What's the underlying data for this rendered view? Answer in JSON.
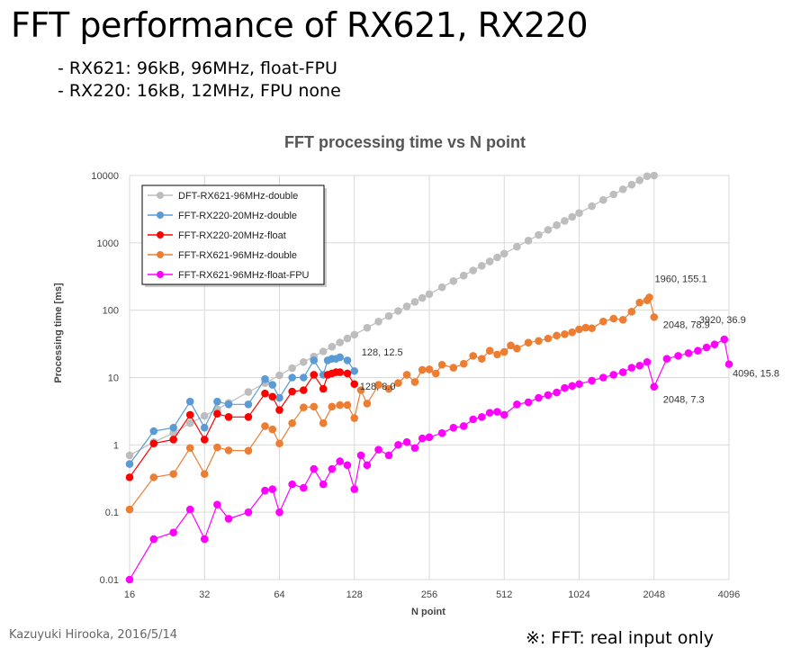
{
  "slide": {
    "title": "FFT performance of RX621, RX220",
    "bullets": [
      "- RX621: 96kB, 96MHz, float-FPU",
      "- RX220: 16kB, 12MHz, FPU none"
    ],
    "credit": "Kazuyuki Hirooka, 2016/5/14",
    "note": "※: FFT: real input only"
  },
  "chart_data": {
    "type": "line",
    "title": "FFT processing time vs N point",
    "xlabel": "N point",
    "ylabel": "Processing time [ms]",
    "xscale": "log2",
    "yscale": "log10",
    "xlim": [
      16,
      4096
    ],
    "ylim": [
      0.01,
      10000
    ],
    "xticks": [
      16,
      32,
      64,
      128,
      256,
      512,
      1024,
      2048,
      4096
    ],
    "xtick_labels": [
      "16",
      "32",
      "64",
      "128",
      "256",
      "512",
      "1024",
      "2048",
      "4096"
    ],
    "yticks": [
      0.01,
      0.1,
      1,
      10,
      100,
      1000,
      10000
    ],
    "ytick_labels": [
      "0.01",
      "0.1",
      "1",
      "10",
      "100",
      "1000",
      "10000"
    ],
    "grid": true,
    "legend_position": "top-left",
    "series": [
      {
        "name": "DFT-RX621-96MHz-double",
        "color": "#bdbdbd",
        "x": [
          16,
          20,
          24,
          28,
          32,
          36,
          40,
          48,
          56,
          64,
          72,
          80,
          88,
          96,
          104,
          112,
          120,
          128,
          144,
          160,
          176,
          192,
          208,
          224,
          240,
          256,
          288,
          320,
          352,
          384,
          416,
          448,
          480,
          512,
          576,
          640,
          704,
          768,
          832,
          896,
          960,
          1024,
          1152,
          1280,
          1408,
          1536,
          1664,
          1792,
          1920,
          2048
        ],
        "y": [
          0.7,
          1.1,
          1.5,
          2.1,
          2.7,
          3.4,
          4.2,
          6.1,
          8.3,
          10.8,
          13.8,
          17,
          20.5,
          24.4,
          28.6,
          33.2,
          38.1,
          43.3,
          54.8,
          67.7,
          82,
          97.5,
          114,
          133,
          152,
          173,
          219,
          271,
          327,
          389,
          457,
          530,
          608,
          692,
          876,
          1080,
          1310,
          1560,
          1830,
          2120,
          2430,
          2770,
          3500,
          4330,
          5240,
          6230,
          7310,
          8480,
          9740,
          10000
        ]
      },
      {
        "name": "FFT-RX220-20MHz-double",
        "color": "#5b9bd5",
        "x": [
          16,
          20,
          24,
          28,
          32,
          36,
          40,
          48,
          56,
          60,
          64,
          72,
          80,
          88,
          96,
          100,
          104,
          108,
          112,
          120,
          128
        ],
        "y": [
          0.52,
          1.6,
          1.8,
          4.4,
          1.8,
          4.4,
          4,
          4,
          9.5,
          7.8,
          5,
          10,
          10,
          18,
          11,
          18,
          19,
          19,
          20,
          18,
          12.5
        ]
      },
      {
        "name": "FFT-RX220-20MHz-float",
        "color": "#ff0000",
        "x": [
          16,
          20,
          24,
          28,
          32,
          36,
          40,
          48,
          56,
          60,
          64,
          72,
          80,
          88,
          96,
          100,
          104,
          108,
          112,
          120,
          128
        ],
        "y": [
          0.33,
          1.05,
          1.2,
          2.8,
          1.2,
          2.9,
          2.6,
          2.6,
          5.8,
          5.2,
          3.3,
          6.2,
          6.5,
          11,
          6.8,
          11,
          11.5,
          12,
          12,
          11.5,
          8
        ]
      },
      {
        "name": "FFT-RX621-96MHz-double",
        "color": "#ed7d31",
        "x": [
          16,
          20,
          24,
          28,
          32,
          36,
          40,
          48,
          56,
          60,
          64,
          72,
          80,
          88,
          96,
          104,
          112,
          120,
          128,
          136,
          144,
          160,
          176,
          192,
          208,
          224,
          240,
          256,
          272,
          288,
          320,
          352,
          384,
          416,
          448,
          480,
          512,
          544,
          576,
          640,
          704,
          768,
          832,
          896,
          960,
          1024,
          1088,
          1152,
          1280,
          1408,
          1536,
          1664,
          1792,
          1920,
          1960,
          2048
        ],
        "y": [
          0.11,
          0.33,
          0.37,
          0.9,
          0.37,
          0.92,
          0.83,
          0.82,
          1.9,
          1.7,
          1.05,
          2.1,
          3.6,
          3.7,
          2.1,
          3.7,
          3.9,
          3.9,
          2.5,
          6.5,
          4.1,
          7.8,
          6.8,
          8.3,
          11,
          8.6,
          13,
          13.2,
          11.5,
          15.5,
          14,
          16,
          21,
          19,
          25,
          22,
          24,
          30,
          27,
          33,
          35,
          38,
          42,
          44,
          47,
          52,
          55,
          54,
          68,
          75,
          72,
          95,
          130,
          140,
          155.1,
          78.9
        ]
      },
      {
        "name": "FFT-RX621-96MHz-float-FPU",
        "color": "#ff00ff",
        "x": [
          16,
          20,
          24,
          28,
          32,
          36,
          40,
          48,
          56,
          60,
          64,
          72,
          80,
          88,
          96,
          104,
          112,
          120,
          128,
          136,
          144,
          160,
          176,
          192,
          208,
          224,
          240,
          256,
          288,
          320,
          352,
          384,
          416,
          448,
          480,
          512,
          576,
          640,
          704,
          768,
          832,
          896,
          960,
          1024,
          1152,
          1280,
          1408,
          1536,
          1664,
          1792,
          1920,
          2048,
          2304,
          2560,
          2816,
          3072,
          3328,
          3584,
          3920,
          4096
        ],
        "y": [
          0.01,
          0.04,
          0.05,
          0.11,
          0.04,
          0.13,
          0.08,
          0.1,
          0.21,
          0.22,
          0.1,
          0.26,
          0.23,
          0.44,
          0.26,
          0.44,
          0.57,
          0.5,
          0.22,
          0.7,
          0.5,
          0.85,
          0.7,
          1,
          1.1,
          0.9,
          1.25,
          1.3,
          1.5,
          1.8,
          1.9,
          2.4,
          2.6,
          3,
          3.1,
          2.8,
          4,
          4.3,
          5,
          5.5,
          6,
          7,
          7.5,
          8,
          9,
          10,
          11,
          12,
          14,
          15,
          17,
          7.3,
          19,
          21,
          23,
          25,
          28,
          31,
          36.9,
          15.8
        ]
      }
    ],
    "annotations": [
      {
        "text": "128, 12.5",
        "x": 128,
        "y": 12.5
      },
      {
        "text": "128, 8.0",
        "x": 128,
        "y": 8.0
      },
      {
        "text": "1960, 155.1",
        "x": 1960,
        "y": 155.1
      },
      {
        "text": "2048, 78.9",
        "x": 2048,
        "y": 78.9
      },
      {
        "text": "2048, 7.3",
        "x": 2048,
        "y": 7.3
      },
      {
        "text": "3920, 36.9",
        "x": 3920,
        "y": 36.9
      },
      {
        "text": "4096, 15.8",
        "x": 4096,
        "y": 15.8
      }
    ]
  }
}
